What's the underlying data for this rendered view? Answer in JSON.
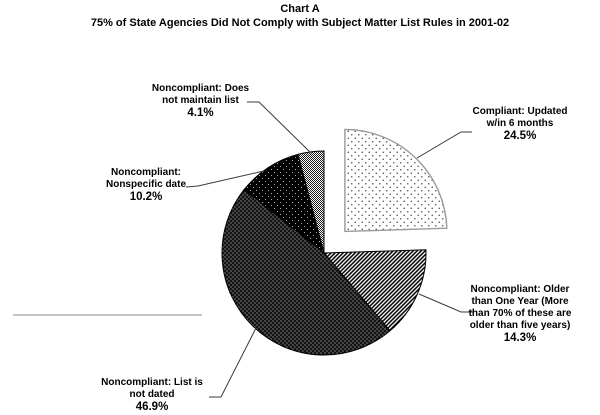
{
  "title": "Chart A",
  "subtitle": "75% of State Agencies Did Not Comply with Subject Matter List Rules in 2001-02",
  "chart_data": {
    "type": "pie",
    "title": "Chart A",
    "subtitle": "75% of State Agencies Did Not Comply with Subject Matter List Rules in 2001-02",
    "direction": "clockwise",
    "start_angle_deg": 0,
    "legend_position": "callout-labels",
    "slices": [
      {
        "name": "compliant-updated",
        "label": "Compliant: Updated w/in 6 months",
        "value": 24.5,
        "pattern": "light-dots",
        "exploded": true,
        "outline": "#9a9a9a"
      },
      {
        "name": "older-than-one-year",
        "label": "Noncompliant: Older than One Year (More than 70% of these are older than five years)",
        "value": 14.3,
        "pattern": "diagonal-hatch",
        "exploded": false,
        "outline": "#000000"
      },
      {
        "name": "list-not-dated",
        "label": "Noncompliant: List is not dated",
        "value": 46.9,
        "pattern": "dark-weave",
        "exploded": false,
        "outline": "#000000"
      },
      {
        "name": "nonspecific-date",
        "label": "Noncompliant: Nonspecific date",
        "value": 10.2,
        "pattern": "black-speckle",
        "exploded": false,
        "outline": "#000000"
      },
      {
        "name": "no-list",
        "label": "Noncompliant: Does not maintain list",
        "value": 4.1,
        "pattern": "gray-check",
        "exploded": false,
        "outline": "#000000"
      }
    ]
  },
  "labels": {
    "no_list": {
      "lines": [
        "Noncompliant: Does",
        "not maintain list"
      ],
      "pct": "4.1%"
    },
    "compliant": {
      "lines": [
        "Compliant: Updated",
        "w/in 6 months"
      ],
      "pct": "24.5%"
    },
    "older": {
      "lines": [
        "Noncompliant: Older",
        "than One Year (More",
        "than 70% of these are",
        "older than five years)"
      ],
      "pct": "14.3%"
    },
    "not_dated": {
      "lines": [
        "Noncompliant: List is",
        "not dated"
      ],
      "pct": "46.9%"
    },
    "nonspecific": {
      "lines": [
        "Noncompliant:",
        "Nonspecific date"
      ],
      "pct": "10.2%"
    }
  },
  "colors": {
    "text": "#000000",
    "leader_line": "#3a3a3a",
    "stray_rule": "#c4c4c4"
  }
}
